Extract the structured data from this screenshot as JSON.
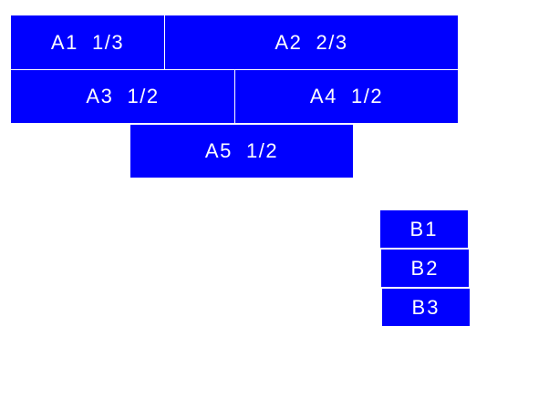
{
  "colors": {
    "box": "#0000ff",
    "text": "#ffffff"
  },
  "group_a": [
    {
      "label": "A1  1/3"
    },
    {
      "label": "A2  2/3"
    },
    {
      "label": "A3  1/2"
    },
    {
      "label": "A4  1/2"
    },
    {
      "label": "A5  1/2"
    }
  ],
  "group_b": [
    {
      "label": "B1"
    },
    {
      "label": "B2"
    },
    {
      "label": "B3"
    }
  ]
}
